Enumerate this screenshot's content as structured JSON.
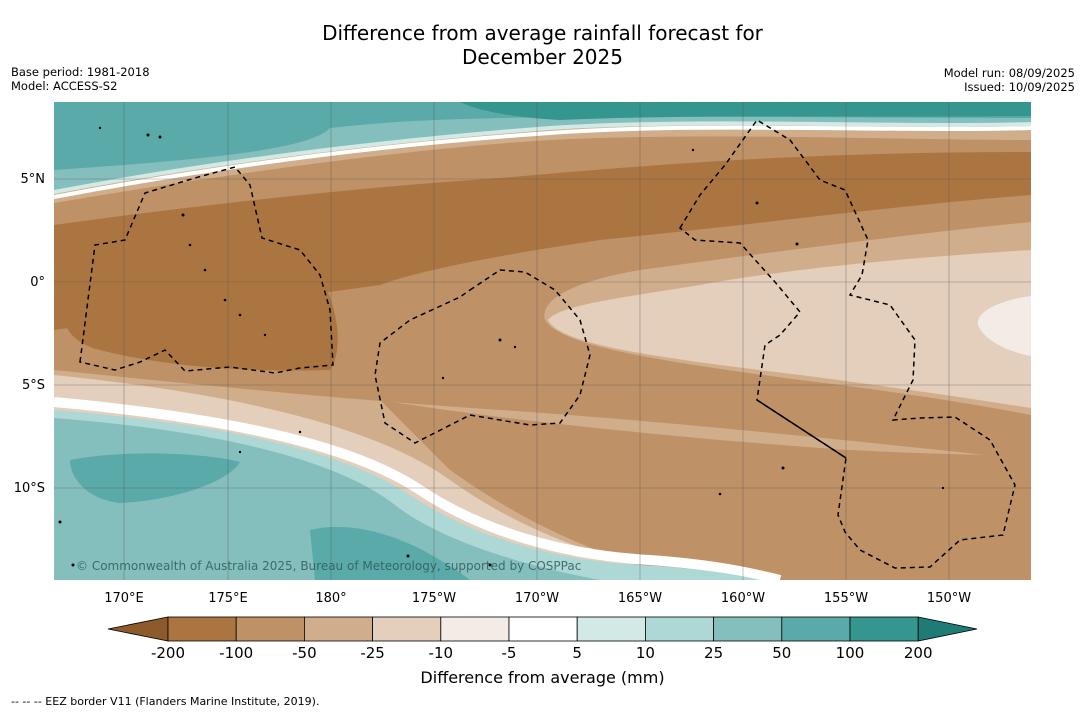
{
  "title": {
    "line1": "Difference from average rainfall forecast for",
    "line2": "December 2025"
  },
  "meta_left": {
    "base_period": "Base period: 1981-2018",
    "model": "Model: ACCESS-S2"
  },
  "meta_right": {
    "model_run": "Model run: 08/09/2025",
    "issued": "Issued: 10/09/2025"
  },
  "map": {
    "lon_labels": [
      "170°E",
      "175°E",
      "180°",
      "175°W",
      "170°W",
      "165°W",
      "160°W",
      "155°W",
      "150°W"
    ],
    "lat_labels": [
      "5°N",
      "0°",
      "5°S",
      "10°S"
    ],
    "copyright": "© Commonwealth of Australia 2025, Bureau of Meteorology, supported by COSPPac"
  },
  "colorbar": {
    "ticks": [
      "-200",
      "-100",
      "-50",
      "-25",
      "-10",
      "-5",
      "5",
      "10",
      "25",
      "50",
      "100",
      "200"
    ],
    "colors": [
      "#8c5a2b",
      "#ab7541",
      "#bf9166",
      "#d1ae8b",
      "#e3cfbb",
      "#f2ebe6",
      "#ffffff",
      "#d2e9e6",
      "#add8d5",
      "#84bfbd",
      "#5aaaa9",
      "#35968f",
      "#1f7b76"
    ],
    "label": "Difference from average (mm)"
  },
  "footnote": "--  --  -- EEZ border V11 (Flanders Marine Institute, 2019)."
}
